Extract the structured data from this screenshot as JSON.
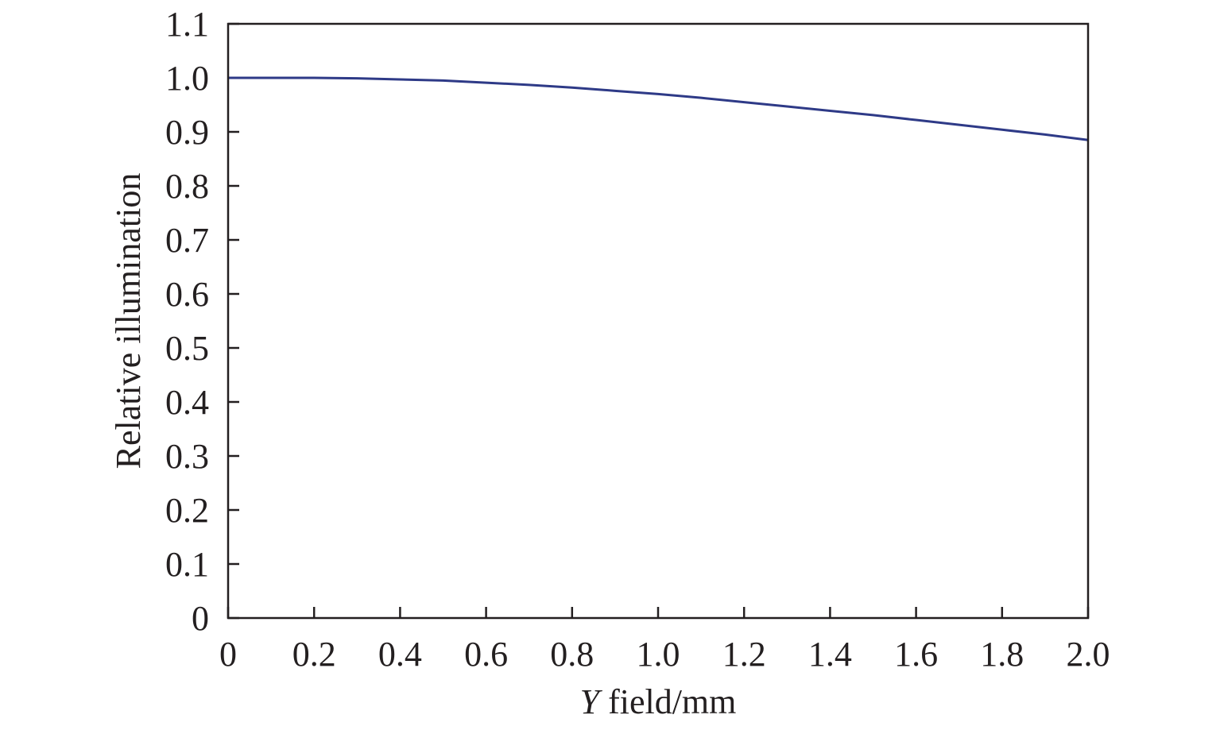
{
  "chart_data": {
    "type": "line",
    "title": "",
    "xlabel_italic_part": "Y",
    "xlabel_rest": " field/mm",
    "ylabel": "Relative illumination",
    "xlim": [
      0,
      2.0
    ],
    "ylim": [
      0,
      1.1
    ],
    "x_ticks": [
      0,
      0.2,
      0.4,
      0.6,
      0.8,
      1.0,
      1.2,
      1.4,
      1.6,
      1.8,
      2.0
    ],
    "x_tick_labels": [
      "0",
      "0.2",
      "0.4",
      "0.6",
      "0.8",
      "1.0",
      "1.2",
      "1.4",
      "1.6",
      "1.8",
      "2.0"
    ],
    "y_ticks": [
      0,
      0.1,
      0.2,
      0.3,
      0.4,
      0.5,
      0.6,
      0.7,
      0.8,
      0.9,
      1.0,
      1.1
    ],
    "y_tick_labels": [
      "0",
      "0.1",
      "0.2",
      "0.3",
      "0.4",
      "0.5",
      "0.6",
      "0.7",
      "0.8",
      "0.9",
      "1.0",
      "1.1"
    ],
    "grid": false,
    "legend": "none",
    "colors": {
      "line": "#2e3a87",
      "axes": "#231f20",
      "background": "#ffffff"
    },
    "series": [
      {
        "x": [
          0,
          0.1,
          0.2,
          0.3,
          0.4,
          0.5,
          0.6,
          0.7,
          0.8,
          0.9,
          1.0,
          1.1,
          1.2,
          1.3,
          1.4,
          1.5,
          1.6,
          1.7,
          1.8,
          1.9,
          2.0
        ],
        "y": [
          1.0,
          1.0,
          1.0,
          0.999,
          0.997,
          0.995,
          0.991,
          0.987,
          0.982,
          0.976,
          0.97,
          0.963,
          0.955,
          0.947,
          0.939,
          0.931,
          0.922,
          0.913,
          0.904,
          0.895,
          0.885
        ]
      }
    ]
  }
}
